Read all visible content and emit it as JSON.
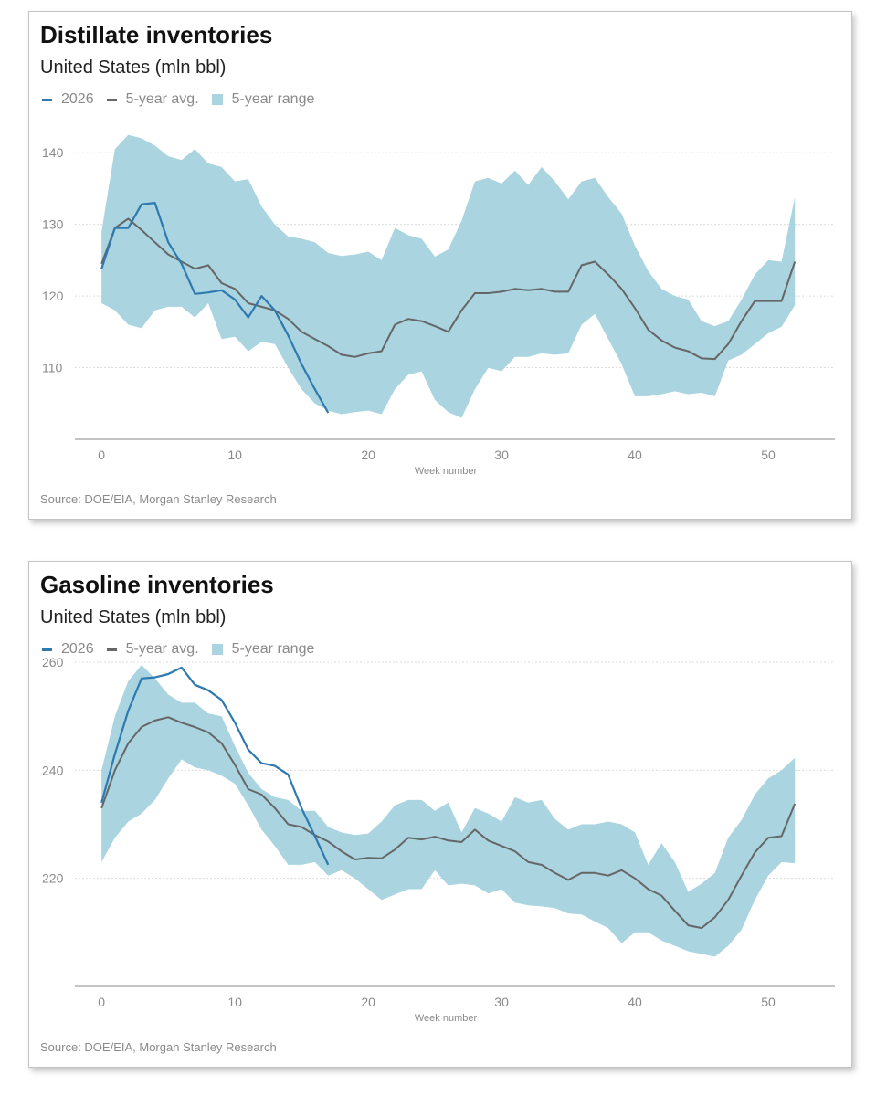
{
  "colors": {
    "current": "#2e7ab0",
    "avg": "#666666",
    "range": "#a9d4e0",
    "grid": "#dcdcdc",
    "axis": "#8a8a8a"
  },
  "chart_data": [
    {
      "type": "line",
      "title": "Distillate inventories",
      "subtitle": "United States (mln bbl)",
      "legend": [
        "2026",
        "5-year avg.",
        "5-year range"
      ],
      "xlabel": "Week number",
      "ylabel": "",
      "source": "Source: DOE/EIA, Morgan Stanley Research",
      "xlim": [
        -2,
        55
      ],
      "ylim": [
        100,
        145
      ],
      "xticks": [
        0,
        10,
        20,
        30,
        40,
        50
      ],
      "yticks": [
        110,
        120,
        130,
        140
      ],
      "grid": true,
      "legend_position": "top-left",
      "series": [
        {
          "name": "2026",
          "x": [
            0,
            1,
            2,
            3,
            4,
            5,
            6,
            7,
            8,
            9,
            10,
            11,
            12,
            13,
            14,
            15,
            16,
            17
          ],
          "values": [
            123.8,
            129.5,
            129.5,
            132.8,
            133.0,
            127.5,
            124.5,
            120.3,
            120.5,
            120.8,
            119.5,
            117.0,
            120.0,
            118.0,
            114.5,
            110.5,
            107.0,
            103.7
          ]
        },
        {
          "name": "5-year avg.",
          "x": [
            0,
            1,
            2,
            3,
            4,
            5,
            6,
            7,
            8,
            9,
            10,
            11,
            12,
            13,
            14,
            15,
            16,
            17,
            18,
            19,
            20,
            21,
            22,
            23,
            24,
            25,
            26,
            27,
            28,
            29,
            30,
            31,
            32,
            33,
            34,
            35,
            36,
            37,
            38,
            39,
            40,
            41,
            42,
            43,
            44,
            45,
            46,
            47,
            48,
            49,
            50,
            51,
            52
          ],
          "values": [
            124.5,
            129.5,
            130.8,
            129.2,
            127.5,
            125.8,
            124.8,
            123.8,
            124.3,
            121.8,
            121.0,
            119.0,
            118.5,
            118.0,
            116.8,
            115.0,
            114.0,
            113.0,
            111.8,
            111.5,
            112.0,
            112.3,
            116.0,
            116.8,
            116.5,
            115.8,
            115.0,
            118.0,
            120.4,
            120.4,
            120.6,
            121.0,
            120.8,
            121.0,
            120.6,
            120.6,
            124.3,
            124.8,
            123.0,
            121.0,
            118.3,
            115.3,
            113.8,
            112.8,
            112.3,
            111.3,
            111.2,
            113.3,
            116.5,
            119.3,
            119.3,
            119.3,
            124.8
          ]
        },
        {
          "name": "5-year range",
          "type": "area",
          "x": [
            0,
            1,
            2,
            3,
            4,
            5,
            6,
            7,
            8,
            9,
            10,
            11,
            12,
            13,
            14,
            15,
            16,
            17,
            18,
            19,
            20,
            21,
            22,
            23,
            24,
            25,
            26,
            27,
            28,
            29,
            30,
            31,
            32,
            33,
            34,
            35,
            36,
            37,
            38,
            39,
            40,
            41,
            42,
            43,
            44,
            45,
            46,
            47,
            48,
            49,
            50,
            51,
            52
          ],
          "low": [
            119.0,
            118.0,
            116.0,
            115.5,
            118.0,
            118.5,
            118.5,
            117.0,
            119.0,
            114.0,
            114.3,
            112.3,
            113.6,
            113.3,
            110.0,
            107.0,
            105.0,
            104.0,
            103.5,
            103.8,
            104.0,
            103.5,
            107.0,
            109.0,
            109.5,
            105.5,
            103.8,
            103.0,
            107.0,
            110.0,
            109.5,
            111.5,
            111.5,
            112.0,
            111.8,
            112.0,
            116.0,
            117.5,
            114.0,
            110.5,
            106.0,
            106.0,
            106.3,
            106.7,
            106.3,
            106.5,
            106.0,
            111.0,
            111.8,
            113.3,
            114.8,
            115.7,
            118.7
          ],
          "high": [
            129.0,
            140.5,
            142.5,
            142.0,
            141.0,
            139.5,
            139.0,
            140.5,
            138.5,
            138.0,
            136.0,
            136.3,
            132.5,
            130.0,
            128.3,
            128.0,
            127.5,
            126.0,
            125.6,
            125.8,
            126.2,
            125.0,
            129.5,
            128.5,
            128.0,
            125.5,
            126.5,
            130.5,
            136.0,
            136.5,
            135.7,
            137.5,
            135.5,
            138.0,
            136.0,
            133.5,
            136.0,
            136.5,
            133.8,
            131.5,
            127.0,
            123.5,
            121.0,
            120.0,
            119.5,
            116.5,
            115.8,
            116.5,
            119.5,
            123.0,
            125.0,
            124.8,
            133.8
          ]
        }
      ]
    },
    {
      "type": "line",
      "title": "Gasoline inventories",
      "subtitle": "United States (mln bbl)",
      "legend": [
        "2026",
        "5-year avg.",
        "5-year range"
      ],
      "xlabel": "Week number",
      "ylabel": "",
      "source": "Source: DOE/EIA, Morgan Stanley Research",
      "xlim": [
        -2,
        55
      ],
      "ylim": [
        200,
        260
      ],
      "xticks": [
        0,
        10,
        20,
        30,
        40,
        50
      ],
      "yticks": [
        220,
        240,
        260
      ],
      "grid": true,
      "legend_position": "top-left",
      "series": [
        {
          "name": "2026",
          "x": [
            0,
            1,
            2,
            3,
            4,
            5,
            6,
            7,
            8,
            9,
            10,
            11,
            12,
            13,
            14,
            15,
            16,
            17
          ],
          "values": [
            234.0,
            243.0,
            251.0,
            257.0,
            257.2,
            257.8,
            259.0,
            255.8,
            254.8,
            253.0,
            248.8,
            243.8,
            241.3,
            240.8,
            239.2,
            233.0,
            227.8,
            222.5
          ]
        },
        {
          "name": "5-year avg.",
          "x": [
            0,
            1,
            2,
            3,
            4,
            5,
            6,
            7,
            8,
            9,
            10,
            11,
            12,
            13,
            14,
            15,
            16,
            17,
            18,
            19,
            20,
            21,
            22,
            23,
            24,
            25,
            26,
            27,
            28,
            29,
            30,
            31,
            32,
            33,
            34,
            35,
            36,
            37,
            38,
            39,
            40,
            41,
            42,
            43,
            44,
            45,
            46,
            47,
            48,
            49,
            50,
            51,
            52
          ],
          "values": [
            233.0,
            240.0,
            245.0,
            248.0,
            249.2,
            249.8,
            248.8,
            248.0,
            247.0,
            245.0,
            241.0,
            236.5,
            235.5,
            233.0,
            230.0,
            229.5,
            228.0,
            226.8,
            225.0,
            223.5,
            223.8,
            223.7,
            225.3,
            227.5,
            227.2,
            227.7,
            227.0,
            226.7,
            229.0,
            227.0,
            226.0,
            225.0,
            223.0,
            222.5,
            221.0,
            219.7,
            221.0,
            221.0,
            220.5,
            221.5,
            220.0,
            218.0,
            216.8,
            214.0,
            211.3,
            210.8,
            212.8,
            216.0,
            220.5,
            224.8,
            227.5,
            227.8,
            233.8
          ]
        },
        {
          "name": "5-year range",
          "type": "area",
          "x": [
            0,
            1,
            2,
            3,
            4,
            5,
            6,
            7,
            8,
            9,
            10,
            11,
            12,
            13,
            14,
            15,
            16,
            17,
            18,
            19,
            20,
            21,
            22,
            23,
            24,
            25,
            26,
            27,
            28,
            29,
            30,
            31,
            32,
            33,
            34,
            35,
            36,
            37,
            38,
            39,
            40,
            41,
            42,
            43,
            44,
            45,
            46,
            47,
            48,
            49,
            50,
            51,
            52
          ],
          "low": [
            223.0,
            227.5,
            230.5,
            232.0,
            234.5,
            238.5,
            242.0,
            240.5,
            240.0,
            239.0,
            237.5,
            233.5,
            229.0,
            226.0,
            222.5,
            222.5,
            223.0,
            220.5,
            221.5,
            220.0,
            218.0,
            216.0,
            217.0,
            218.0,
            218.0,
            221.5,
            218.7,
            219.0,
            218.7,
            217.2,
            218.0,
            215.5,
            215.0,
            214.8,
            214.5,
            213.5,
            213.3,
            212.0,
            210.8,
            208.0,
            210.0,
            210.0,
            208.5,
            207.5,
            206.5,
            206.0,
            205.5,
            207.5,
            210.5,
            216.0,
            220.5,
            223.0,
            222.8
          ]
        },
        {
          "name": "5-year range-high",
          "type": "area-high",
          "x": [
            0,
            1,
            2,
            3,
            4,
            5,
            6,
            7,
            8,
            9,
            10,
            11,
            12,
            13,
            14,
            15,
            16,
            17,
            18,
            19,
            20,
            21,
            22,
            23,
            24,
            25,
            26,
            27,
            28,
            29,
            30,
            31,
            32,
            33,
            34,
            35,
            36,
            37,
            38,
            39,
            40,
            41,
            42,
            43,
            44,
            45,
            46,
            47,
            48,
            49,
            50,
            51,
            52
          ],
          "values": [
            240.0,
            250.0,
            256.5,
            259.5,
            257.0,
            254.0,
            252.5,
            252.5,
            250.5,
            250.0,
            244.5,
            239.5,
            236.5,
            235.0,
            234.5,
            232.5,
            232.5,
            229.5,
            228.5,
            228.0,
            228.3,
            230.5,
            233.5,
            234.5,
            234.5,
            232.5,
            234.0,
            228.5,
            233.0,
            232.0,
            230.5,
            235.0,
            234.0,
            234.5,
            231.0,
            229.0,
            230.0,
            230.0,
            230.5,
            230.0,
            228.5,
            222.5,
            226.5,
            223.0,
            217.5,
            219.0,
            221.0,
            227.5,
            230.8,
            235.5,
            238.5,
            240.0,
            242.3
          ]
        }
      ]
    }
  ]
}
